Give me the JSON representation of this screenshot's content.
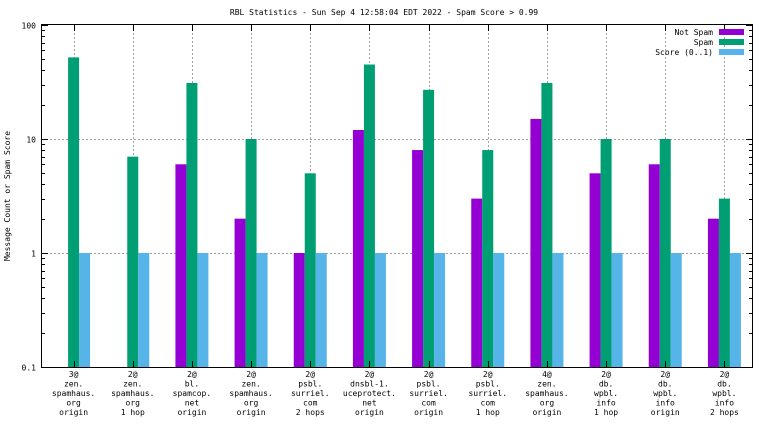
{
  "chart_data": {
    "type": "bar",
    "title": "RBL Statistics - Sun Sep  4 12:58:04 EDT 2022 - Spam Score > 0.99",
    "ylabel": "Message Count or Spam Score",
    "xlabel": "",
    "yscale": "log",
    "ylim": [
      0.1,
      100
    ],
    "yticks": [
      {
        "value": 0.1,
        "label": "0.1"
      },
      {
        "value": 1,
        "label": "1"
      },
      {
        "value": 10,
        "label": "10"
      },
      {
        "value": 100,
        "label": "100"
      }
    ],
    "grid": true,
    "legend_position": "top-right",
    "categories": [
      [
        "3@",
        "zen.",
        "spamhaus.",
        "org",
        "origin"
      ],
      [
        "2@",
        "zen.",
        "spamhaus.",
        "org",
        "1 hop"
      ],
      [
        "2@",
        "bl.",
        "spamcop.",
        "net",
        "origin"
      ],
      [
        "2@",
        "zen.",
        "spamhaus.",
        "org",
        "origin"
      ],
      [
        "2@",
        "psbl.",
        "surriel.",
        "com",
        "2 hops"
      ],
      [
        "2@",
        "dnsbl-1.",
        "uceprotect.",
        "net",
        "origin"
      ],
      [
        "2@",
        "psbl.",
        "surriel.",
        "com",
        "origin"
      ],
      [
        "2@",
        "psbl.",
        "surriel.",
        "com",
        "1 hop"
      ],
      [
        "4@",
        "zen.",
        "spamhaus.",
        "org",
        "origin"
      ],
      [
        "2@",
        "db.",
        "wpbl.",
        "info",
        "1 hop"
      ],
      [
        "2@",
        "db.",
        "wpbl.",
        "info",
        "origin"
      ],
      [
        "2@",
        "db.",
        "wpbl.",
        "info",
        "2 hops"
      ]
    ],
    "series": [
      {
        "name": "Not Spam",
        "color": "#9400d3",
        "values": [
          null,
          null,
          6,
          2,
          1,
          12,
          8,
          3,
          15,
          5,
          6,
          2
        ]
      },
      {
        "name": "Spam",
        "color": "#009e73",
        "values": [
          52,
          7,
          31,
          10,
          5,
          45,
          27,
          8,
          31,
          10,
          10,
          3
        ]
      },
      {
        "name": "Score (0..1)",
        "color": "#56b4e9",
        "values": [
          1,
          1,
          1,
          1,
          1,
          1,
          1,
          1,
          1,
          1,
          1,
          1
        ]
      }
    ]
  }
}
